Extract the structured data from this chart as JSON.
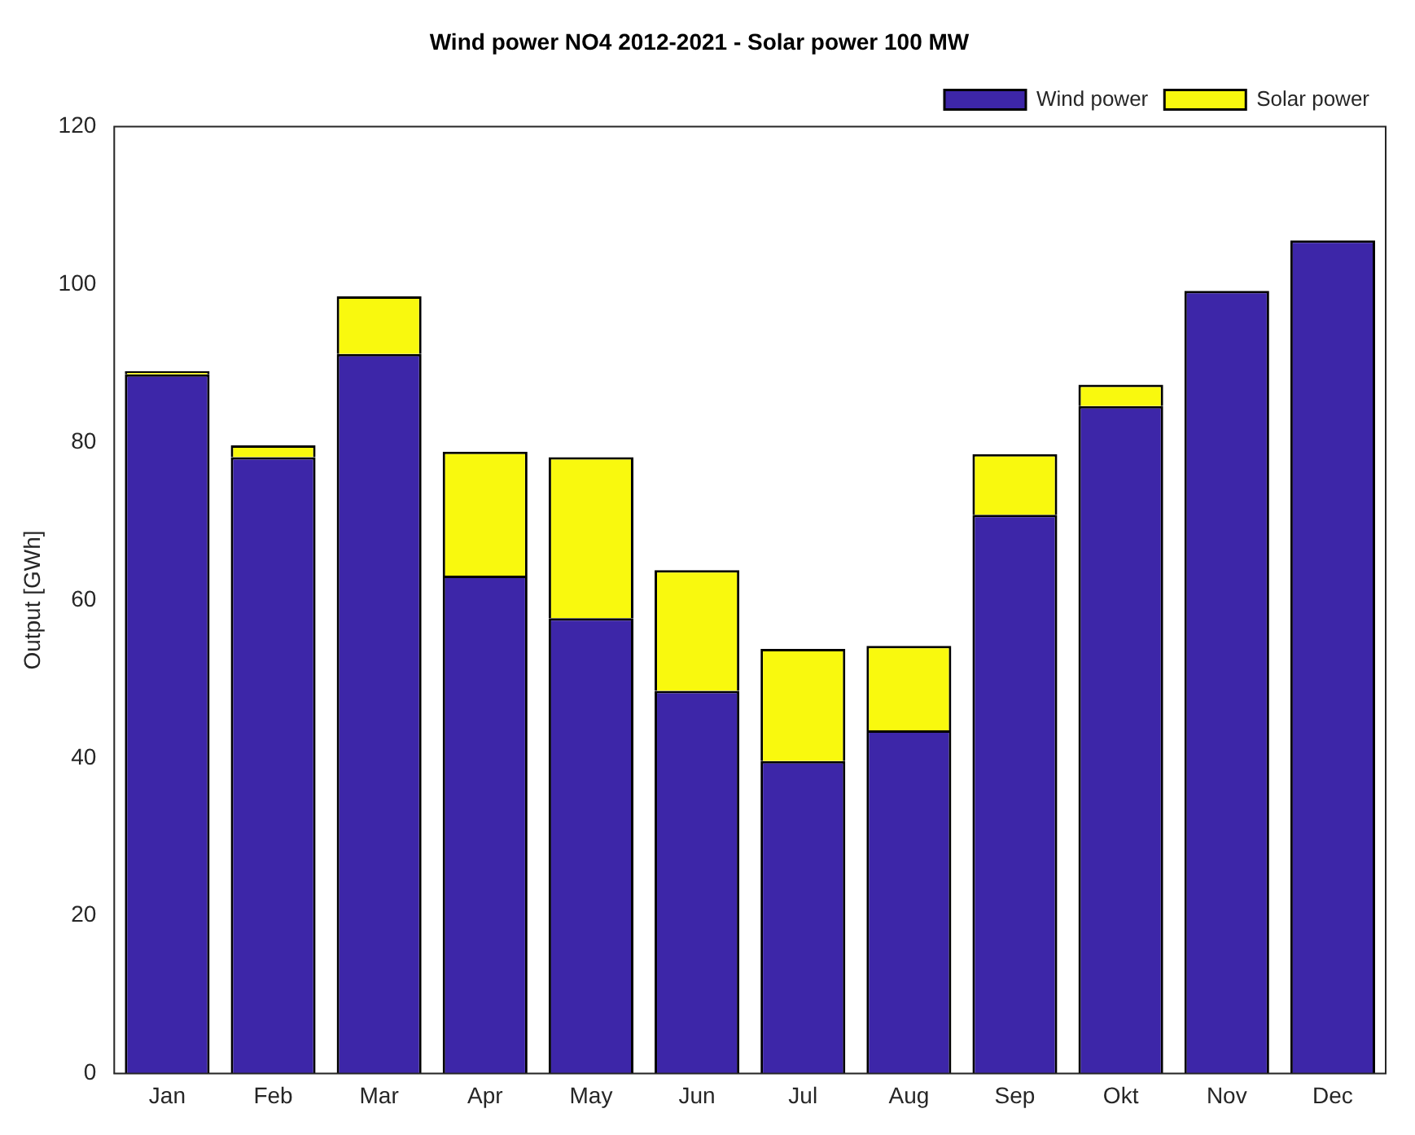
{
  "chart_data": {
    "type": "bar",
    "title": "Wind power NO4 2012-2021 - Solar power 100 MW",
    "ylabel": "Output [GWh]",
    "categories": [
      "Jan",
      "Feb",
      "Mar",
      "Apr",
      "May",
      "Jun",
      "Jul",
      "Aug",
      "Sep",
      "Okt",
      "Nov",
      "Dec"
    ],
    "stacked": true,
    "series": [
      {
        "name": "Wind power",
        "color": "#3d26a8",
        "values": [
          88.6,
          78.1,
          91.2,
          63.1,
          57.7,
          48.5,
          39.6,
          43.5,
          70.8,
          84.6,
          99.2,
          105.6
        ]
      },
      {
        "name": "Solar power",
        "color": "#f9f90e",
        "values": [
          0.4,
          1.5,
          7.3,
          15.7,
          20.4,
          15.3,
          14.2,
          10.7,
          7.7,
          2.7,
          0,
          0
        ]
      }
    ],
    "ylim": [
      0,
      120
    ],
    "yticks": [
      0,
      20,
      40,
      60,
      80,
      100,
      120
    ],
    "grid": false,
    "legend": "top right"
  }
}
